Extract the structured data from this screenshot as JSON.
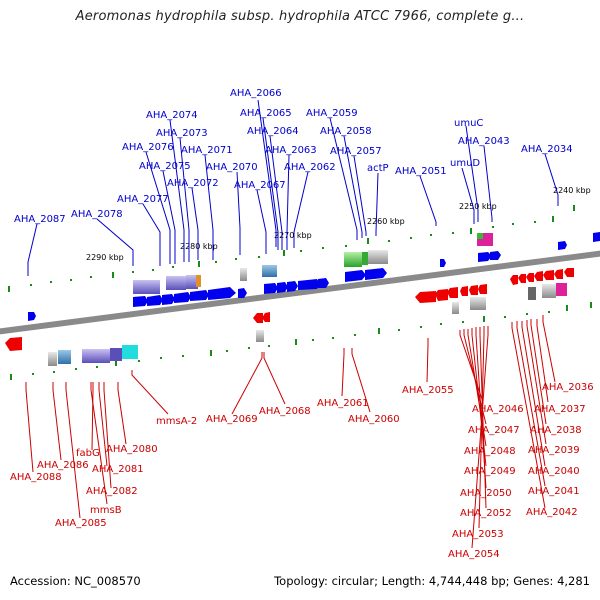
{
  "title": "Aeromonas hydrophila subsp. hydrophila ATCC 7966, complete g...",
  "footer": {
    "accession": "Accession: NC_008570",
    "topology": "Topology: circular; Length: 4,744,448 bp; Genes: 4,281"
  },
  "colors": {
    "forward_strand": "#0000ee",
    "reverse_strand": "#ee0000",
    "forward_label": "#0000cc",
    "reverse_label": "#cc0000",
    "backbone": "#8a8a8a",
    "tick": "#1a8a1a"
  },
  "kbp_labels": [
    "2240 kbp",
    "2250 kbp",
    "2260 kbp",
    "2270 kbp",
    "2280 kbp",
    "2290 kbp"
  ],
  "top_labels": [
    "AHA_2066",
    "AHA_2074",
    "AHA_2065",
    "AHA_2059",
    "umuC",
    "AHA_2064",
    "AHA_2058",
    "AHA_2073",
    "AHA_2043",
    "AHA_2076",
    "AHA_2071",
    "AHA_2063",
    "AHA_2057",
    "AHA_2034",
    "umuD",
    "AHA_2075",
    "AHA_2070",
    "AHA_2062",
    "actP",
    "AHA_2051",
    "AHA_2072",
    "AHA_2067",
    "AHA_2077",
    "AHA_2087",
    "AHA_2078"
  ],
  "bottom_labels": [
    "AHA_2055",
    "AHA_2036",
    "mmsA-2",
    "AHA_2061",
    "AHA_2046",
    "AHA_2037",
    "AHA_2069",
    "AHA_2068",
    "AHA_2060",
    "AHA_2047",
    "AHA_2038",
    "AHA_2048",
    "AHA_2039",
    "AHA_2080",
    "fabG",
    "AHA_2086",
    "AHA_2049",
    "AHA_2040",
    "AHA_2081",
    "AHA_2088",
    "AHA_2082",
    "AHA_2050",
    "AHA_2041",
    "mmsB",
    "AHA_2052",
    "AHA_2042",
    "AHA_2085",
    "AHA_2053",
    "AHA_2054"
  ]
}
